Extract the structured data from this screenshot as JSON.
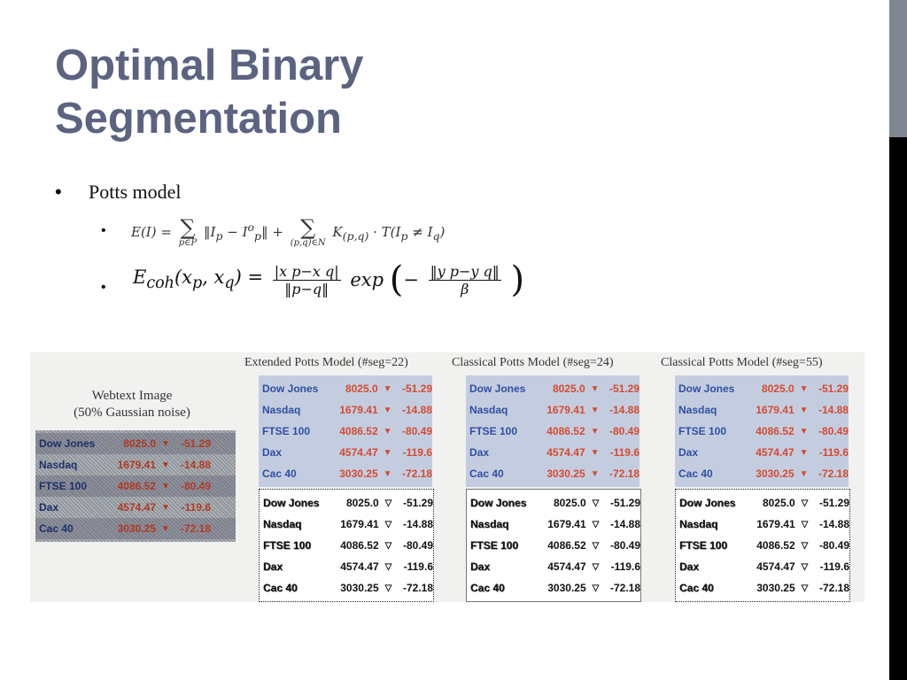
{
  "title": {
    "line1": "Optimal Binary",
    "line2": "Segmentation"
  },
  "bullets": {
    "dot": "•",
    "potts": "Potts model"
  },
  "eq1": {
    "lhs": "E(I) =",
    "sum1_sub": "p∈P",
    "term1": "‖I",
    "term1b": "p",
    "term1c": " − I",
    "term1d": "p",
    "term1e": "‖ +",
    "sum2_sub": "(p,q)∈N",
    "term2": "K",
    "term2b": "(p,q)",
    "term2c": " · T(I",
    "term2d": "p",
    "term2e": " ≠ I",
    "term2f": "q",
    "term2g": ")"
  },
  "eq2": {
    "lhs": "E",
    "lhs_sub": "coh",
    "args": "(x",
    "args_p": "p",
    "args_mid": ", x",
    "args_q": "q",
    "args_end": ") =",
    "num": "|x p−x q|",
    "den": "‖p−q‖",
    "exp": "exp",
    "num2": "‖y p−y q‖",
    "den2": "β"
  },
  "figure": {
    "webtext_caption_line1": "Webtext Image",
    "webtext_caption_line2": "(50% Gaussian noise)",
    "captions": [
      "Extended Potts Model (#seg=22)",
      "Classical Potts Model (#seg=24)",
      "Classical Potts Model (#seg=55)"
    ],
    "rows": [
      {
        "name": "Dow Jones",
        "value": "8025.0",
        "change": "-51.29"
      },
      {
        "name": "Nasdaq",
        "value": "1679.41",
        "change": "-14.88"
      },
      {
        "name": "FTSE 100",
        "value": "4086.52",
        "change": "-80.49"
      },
      {
        "name": "Dax",
        "value": "4574.47",
        "change": "-119.6"
      },
      {
        "name": "Cac 40",
        "value": "3030.25",
        "change": "-72.18"
      }
    ],
    "arrow_filled": "▼",
    "arrow_outline": "▽"
  },
  "colors": {
    "title": "#5b6380",
    "name_blue": "#2e4ea3",
    "value_red": "#d54b2f",
    "panel_bg": "#c4cde0"
  }
}
